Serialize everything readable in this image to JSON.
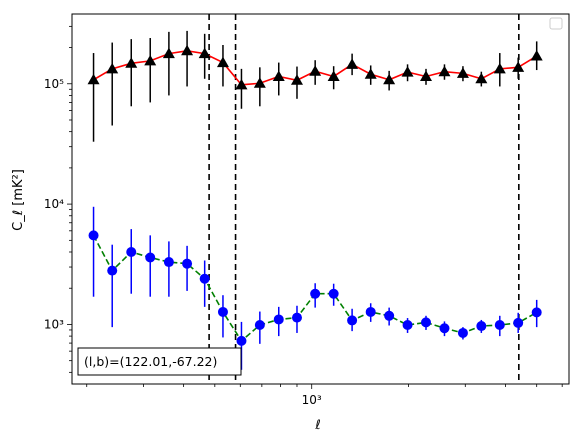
{
  "chart_data": {
    "type": "scatter",
    "xscale": "log",
    "yscale": "log",
    "xlim": [
      180,
      6300
    ],
    "ylim": [
      320,
      380000
    ],
    "xlabel": "ℓ",
    "ylabel": "C_ℓ  [mK²]",
    "x_tick_labels": [
      {
        "value": 1000,
        "label": "10³"
      }
    ],
    "y_tick_labels": [
      {
        "value": 1000,
        "label": "10³"
      },
      {
        "value": 10000,
        "label": "10⁴"
      },
      {
        "value": 100000,
        "label": "10⁵"
      }
    ],
    "grid": false,
    "legend": {
      "placement": "top-right",
      "entries": []
    },
    "annotation": "(l,b)=(122.01,-67.22)",
    "vlines": [
      480,
      580,
      4400
    ],
    "series": [
      {
        "marker": "triangle",
        "marker_color": "#000000",
        "line_color": "#ff0000",
        "linestyle": "solid",
        "errorbar_color": "#000000",
        "points": [
          {
            "x": 210,
            "y": 108000,
            "lo": 33000,
            "hi": 180000
          },
          {
            "x": 240,
            "y": 133000,
            "lo": 45000,
            "hi": 220000
          },
          {
            "x": 275,
            "y": 148000,
            "lo": 65000,
            "hi": 235000
          },
          {
            "x": 315,
            "y": 155000,
            "lo": 70000,
            "hi": 240000
          },
          {
            "x": 360,
            "y": 178000,
            "lo": 80000,
            "hi": 270000
          },
          {
            "x": 410,
            "y": 188000,
            "lo": 95000,
            "hi": 275000
          },
          {
            "x": 465,
            "y": 178000,
            "lo": 110000,
            "hi": 260000
          },
          {
            "x": 530,
            "y": 150000,
            "lo": 95000,
            "hi": 210000
          },
          {
            "x": 605,
            "y": 98000,
            "lo": 62000,
            "hi": 133000
          },
          {
            "x": 690,
            "y": 101000,
            "lo": 65000,
            "hi": 137000
          },
          {
            "x": 790,
            "y": 115000,
            "lo": 80000,
            "hi": 150000
          },
          {
            "x": 900,
            "y": 107000,
            "lo": 75000,
            "hi": 139000
          },
          {
            "x": 1025,
            "y": 127000,
            "lo": 98000,
            "hi": 157000
          },
          {
            "x": 1170,
            "y": 115000,
            "lo": 90000,
            "hi": 140000
          },
          {
            "x": 1335,
            "y": 145000,
            "lo": 118000,
            "hi": 178000
          },
          {
            "x": 1525,
            "y": 120000,
            "lo": 98000,
            "hi": 142000
          },
          {
            "x": 1740,
            "y": 108000,
            "lo": 88000,
            "hi": 128000
          },
          {
            "x": 1985,
            "y": 125000,
            "lo": 105000,
            "hi": 145000
          },
          {
            "x": 2265,
            "y": 115000,
            "lo": 98000,
            "hi": 133000
          },
          {
            "x": 2585,
            "y": 126000,
            "lo": 108000,
            "hi": 145000
          },
          {
            "x": 2950,
            "y": 122000,
            "lo": 105000,
            "hi": 140000
          },
          {
            "x": 3365,
            "y": 110000,
            "lo": 95000,
            "hi": 126000
          },
          {
            "x": 3840,
            "y": 133000,
            "lo": 95000,
            "hi": 180000
          },
          {
            "x": 4380,
            "y": 137000,
            "lo": 110000,
            "hi": 165000
          },
          {
            "x": 5000,
            "y": 170000,
            "lo": 130000,
            "hi": 225000
          }
        ]
      },
      {
        "marker": "circle",
        "marker_color": "#0000ff",
        "line_color": "#008000",
        "linestyle": "dashed",
        "errorbar_color": "#0000ff",
        "points": [
          {
            "x": 210,
            "y": 5500,
            "lo": 1700,
            "hi": 9500
          },
          {
            "x": 240,
            "y": 2800,
            "lo": 950,
            "hi": 4600
          },
          {
            "x": 275,
            "y": 4000,
            "lo": 1800,
            "hi": 6200
          },
          {
            "x": 315,
            "y": 3600,
            "lo": 1700,
            "hi": 5500
          },
          {
            "x": 360,
            "y": 3300,
            "lo": 1700,
            "hi": 4900
          },
          {
            "x": 410,
            "y": 3200,
            "lo": 1900,
            "hi": 4500
          },
          {
            "x": 465,
            "y": 2400,
            "lo": 1400,
            "hi": 3400
          },
          {
            "x": 530,
            "y": 1270,
            "lo": 780,
            "hi": 1750
          },
          {
            "x": 605,
            "y": 730,
            "lo": 420,
            "hi": 1050
          },
          {
            "x": 690,
            "y": 990,
            "lo": 690,
            "hi": 1280
          },
          {
            "x": 790,
            "y": 1100,
            "lo": 800,
            "hi": 1400
          },
          {
            "x": 900,
            "y": 1140,
            "lo": 850,
            "hi": 1430
          },
          {
            "x": 1025,
            "y": 1800,
            "lo": 1380,
            "hi": 2200
          },
          {
            "x": 1170,
            "y": 1800,
            "lo": 1430,
            "hi": 2180
          },
          {
            "x": 1335,
            "y": 1080,
            "lo": 880,
            "hi": 1350
          },
          {
            "x": 1525,
            "y": 1270,
            "lo": 1050,
            "hi": 1500
          },
          {
            "x": 1740,
            "y": 1180,
            "lo": 980,
            "hi": 1380
          },
          {
            "x": 1985,
            "y": 990,
            "lo": 850,
            "hi": 1130
          },
          {
            "x": 2265,
            "y": 1040,
            "lo": 900,
            "hi": 1180
          },
          {
            "x": 2585,
            "y": 930,
            "lo": 800,
            "hi": 1060
          },
          {
            "x": 2950,
            "y": 850,
            "lo": 750,
            "hi": 950
          },
          {
            "x": 3365,
            "y": 970,
            "lo": 850,
            "hi": 1090
          },
          {
            "x": 3840,
            "y": 990,
            "lo": 800,
            "hi": 1180
          },
          {
            "x": 4380,
            "y": 1030,
            "lo": 850,
            "hi": 1250
          },
          {
            "x": 5000,
            "y": 1260,
            "lo": 950,
            "hi": 1600
          }
        ]
      }
    ]
  }
}
